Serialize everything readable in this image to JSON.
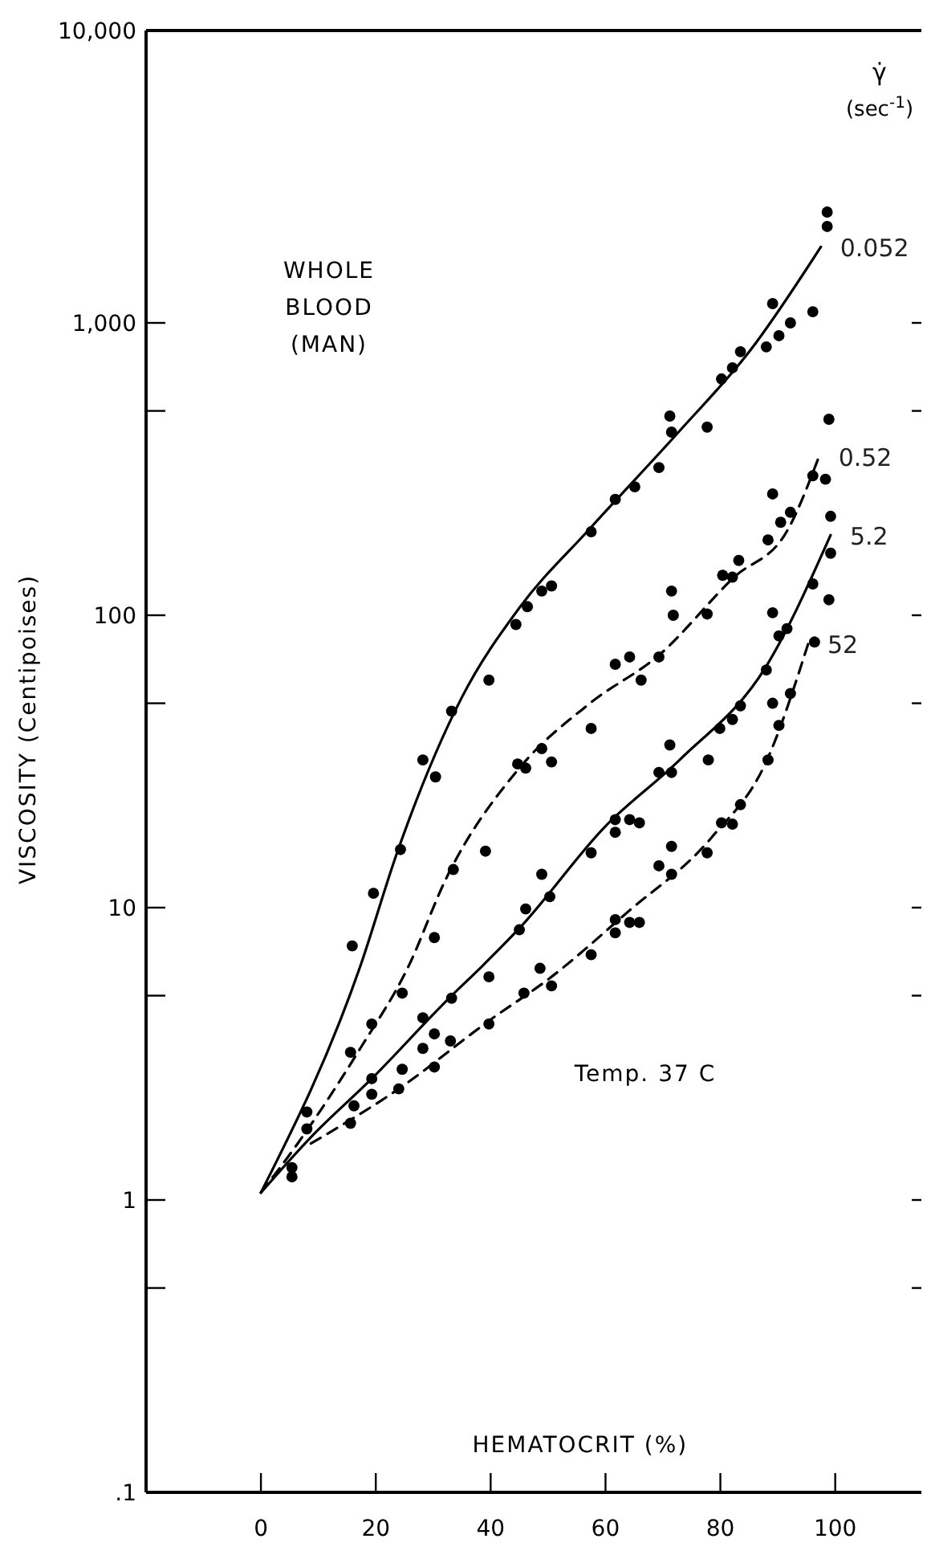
{
  "chart_data": {
    "type": "scatter",
    "xlabel": "HEMATOCRIT (%)",
    "ylabel": "VISCOSITY (Centipoises)",
    "legend_title": "γ̇ (sec$^{-1}$)",
    "annotations": [
      "WHOLE\nBLOOD\n(MAN)",
      "Temp. 37 C"
    ],
    "log": "y",
    "xlim": [
      -20,
      115
    ],
    "ylim": [
      0.1,
      10000
    ],
    "xticks": [
      0,
      20,
      40,
      60,
      80,
      100
    ],
    "yticks": [
      {
        "value": 0.1,
        "label": ".1"
      },
      {
        "value": 0.5,
        "label": null
      },
      1,
      {
        "value": 5,
        "label": null
      },
      10,
      {
        "value": 50,
        "label": null
      },
      100,
      {
        "value": 500,
        "label": null
      },
      {
        "value": 1000,
        "label": "1,000"
      },
      {
        "value": 10000,
        "label": "10,000"
      }
    ],
    "grid": false,
    "marker": "circle",
    "series": [
      {
        "color": "#000000",
        "x": [
          5.4,
          8,
          15.9,
          19.6,
          24.3,
          30.4,
          28.2,
          33.2,
          39.7,
          44.4,
          46.4,
          48.9,
          50.6,
          57.5,
          61.7,
          65.1,
          69.3,
          71.5,
          71.2,
          77.7,
          80.2,
          82.1,
          83.5,
          88,
          90.2,
          92.2,
          89.1,
          96.1,
          98.6,
          98.6
        ],
        "values": [
          1.29,
          1.75,
          7.4,
          11.2,
          15.8,
          28,
          32,
          47,
          60,
          93,
          107,
          121,
          126,
          193,
          249,
          275,
          320,
          423,
          480,
          440,
          643,
          702,
          797,
          828,
          904,
          1000,
          1164,
          1092,
          2137,
          2393
        ]
      },
      {
        "color": "#000000",
        "x": [
          8,
          15.6,
          19.3,
          24.6,
          30.2,
          33.5,
          39.1,
          44.7,
          46.1,
          48.9,
          50.6,
          57.5,
          61.7,
          64.2,
          66.2,
          69.3,
          71.5,
          71.8,
          77.7,
          80.4,
          82.1,
          83.2,
          88.3,
          89.1,
          90.5,
          92.2,
          96.1,
          98.3,
          98.9
        ],
        "values": [
          2,
          3.2,
          4,
          5.1,
          7.9,
          13.5,
          15.6,
          31,
          30,
          35,
          31.5,
          41,
          68,
          72,
          60,
          72,
          121,
          100,
          101,
          137,
          135,
          154,
          181,
          260,
          208,
          225,
          300,
          292,
          468
        ]
      },
      {
        "color": "#000000",
        "x": [
          16.2,
          19.3,
          24.6,
          28.2,
          30.2,
          33.2,
          39.7,
          45,
          46.1,
          48.9,
          50.3,
          57.5,
          61.7,
          61.7,
          64.2,
          65.9,
          69.3,
          71.5,
          71.2,
          77.9,
          79.9,
          82.1,
          83.5,
          88,
          89.1,
          90.2,
          91.6,
          96.1,
          98.9,
          99.2
        ],
        "values": [
          2.1,
          2.6,
          2.8,
          4.2,
          3.7,
          4.9,
          5.8,
          8.4,
          9.9,
          13,
          10.9,
          15.4,
          18.1,
          20,
          20,
          19.5,
          29,
          29,
          36,
          32,
          41,
          44,
          49,
          65,
          102,
          85,
          90,
          128,
          113,
          218
        ]
      },
      {
        "color": "#000000",
        "x": [
          5.4,
          15.6,
          19.3,
          24,
          30.2,
          28.2,
          33,
          39.7,
          45.8,
          50.6,
          48.6,
          57.5,
          61.7,
          64.2,
          65.9,
          61.7,
          69.3,
          71.5,
          71.5,
          77.7,
          80.2,
          82.1,
          83.5,
          88.3,
          90.2,
          89.1,
          92.2,
          96.4,
          99.2
        ],
        "values": [
          1.2,
          1.83,
          2.3,
          2.4,
          2.85,
          3.3,
          3.5,
          4,
          5.1,
          5.4,
          6.2,
          6.9,
          8.2,
          8.9,
          8.9,
          9.1,
          13.9,
          13,
          16.2,
          15.4,
          19.5,
          19.3,
          22.5,
          32,
          42,
          50,
          54,
          81,
          163
        ]
      },
      {
        "type": "line",
        "name": "0.052",
        "color": "#000000",
        "line_style": "solid",
        "marker": "none",
        "x": [
          0,
          17.3,
          23.7,
          34.9,
          45,
          57.3,
          72.9,
          85.2,
          97.5
        ],
        "values": [
          1.06,
          6.3,
          15.4,
          52,
          106,
          198,
          427,
          805,
          1820
        ]
      },
      {
        "type": "line",
        "name": "0.52",
        "color": "#000000",
        "line_style": "dashed",
        "marker": "none",
        "x": [
          0,
          6.4,
          17.3,
          25.7,
          32.1,
          45,
          57.3,
          69.3,
          82.4,
          91.6,
          97.2
        ],
        "values": [
          1.06,
          1.56,
          3.3,
          6.3,
          12.4,
          30,
          50,
          73,
          135,
          194,
          350
        ]
      },
      {
        "type": "line",
        "name": "5.2",
        "color": "#000000",
        "line_style": "solid",
        "marker": "none",
        "x": [
          0,
          8.7,
          19.3,
          33.2,
          38.5,
          45,
          60,
          72.9,
          88,
          99.2
        ],
        "values": [
          1.06,
          1.64,
          2.6,
          5,
          6.3,
          8.5,
          19,
          32,
          67,
          188
        ]
      },
      {
        "type": "line",
        "name": "52",
        "color": "#000000",
        "line_style": "dashed",
        "marker": "none",
        "x": [
          8.7,
          24,
          39.7,
          50.6,
          63.7,
          78.5,
          88,
          95.3
        ],
        "values": [
          1.56,
          2.4,
          4.1,
          5.8,
          9.6,
          17.4,
          31.6,
          80
        ]
      }
    ]
  }
}
